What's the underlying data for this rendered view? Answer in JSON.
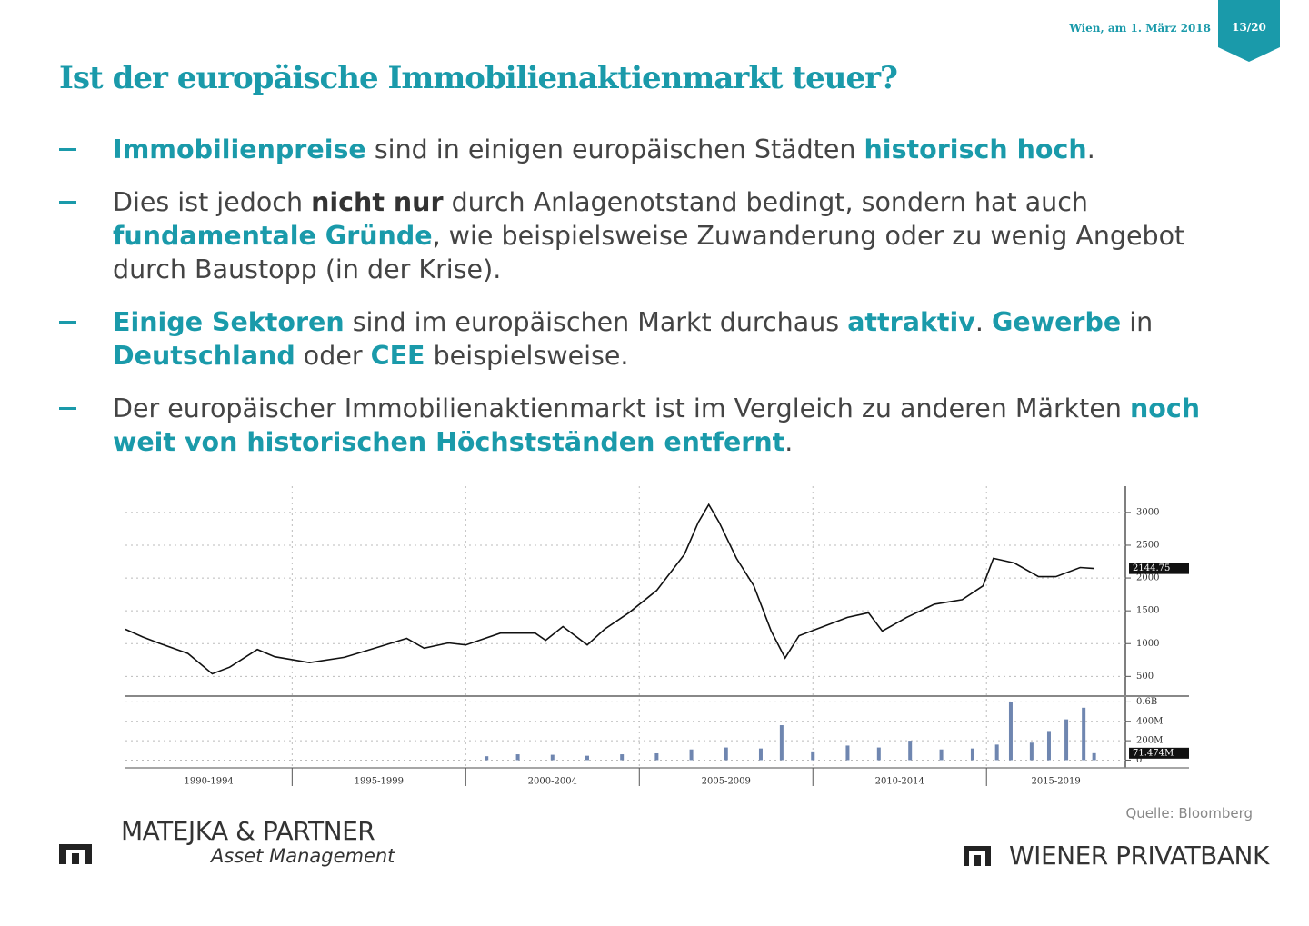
{
  "header": {
    "date": "Wien, am 1. März 2018",
    "page": "13/20"
  },
  "title": "Ist der europäische Immobilienaktienmarkt teuer?",
  "bullets": [
    {
      "runs": [
        {
          "text": "Immobilienpreise",
          "style": "accent"
        },
        {
          "text": " sind in einigen europäischen Städten ",
          "style": "plain"
        },
        {
          "text": "historisch hoch",
          "style": "accent"
        },
        {
          "text": ".",
          "style": "plain"
        }
      ]
    },
    {
      "runs": [
        {
          "text": "Dies ist jedoch ",
          "style": "plain"
        },
        {
          "text": "nicht nur",
          "style": "strong"
        },
        {
          "text": " durch Anlagenotstand bedingt, sondern hat auch ",
          "style": "plain"
        },
        {
          "text": "fundamentale Gründe",
          "style": "accent"
        },
        {
          "text": ", wie beispielsweise Zuwanderung oder zu wenig Angebot durch Baustopp (in der Krise).",
          "style": "plain"
        }
      ]
    },
    {
      "runs": [
        {
          "text": "Einige Sektoren",
          "style": "accent"
        },
        {
          "text": " sind im europäischen Markt durchaus ",
          "style": "plain"
        },
        {
          "text": "attraktiv",
          "style": "accent"
        },
        {
          "text": ". ",
          "style": "plain"
        },
        {
          "text": "Gewerbe",
          "style": "accent"
        },
        {
          "text": " in ",
          "style": "plain"
        },
        {
          "text": "Deutschland",
          "style": "accent"
        },
        {
          "text": " oder ",
          "style": "plain"
        },
        {
          "text": "CEE",
          "style": "accent"
        },
        {
          "text": " beispielsweise.",
          "style": "plain"
        }
      ]
    },
    {
      "runs": [
        {
          "text": "Der europäischer Immobilienaktienmarkt ist im Vergleich zu anderen Märkten ",
          "style": "plain"
        },
        {
          "text": "noch weit von historischen Höchstständen entfernt",
          "style": "accent"
        },
        {
          "text": ".",
          "style": "plain"
        }
      ]
    }
  ],
  "chart_data": [
    {
      "type": "line",
      "x": [
        1990.2,
        1990.7,
        1991.2,
        1992,
        1992.7,
        1993.2,
        1994,
        1994.5,
        1995.5,
        1996.5,
        1997.5,
        1998.3,
        1998.8,
        1999.5,
        2000,
        2001,
        2002,
        2002.3,
        2002.8,
        2003.5,
        2004,
        2004.7,
        2005.5,
        2006.3,
        2006.7,
        2007,
        2007.3,
        2007.8,
        2008.3,
        2008.8,
        2009.2,
        2009.6,
        2010.3,
        2011,
        2011.6,
        2012,
        2012.7,
        2013.5,
        2014.3,
        2014.9,
        2015.2,
        2015.8,
        2016.5,
        2017,
        2017.7,
        2018.1
      ],
      "series": [
        {
          "color": "#111111",
          "values": [
            1218,
            1100,
            1000,
            850,
            540,
            640,
            910,
            800,
            710,
            790,
            950,
            1080,
            930,
            1010,
            980,
            1160,
            1160,
            1050,
            1260,
            980,
            1220,
            1470,
            1810,
            2360,
            2850,
            3120,
            2850,
            2300,
            1880,
            1190,
            780,
            1120,
            1260,
            1400,
            1470,
            1190,
            1400,
            1600,
            1670,
            1880,
            2300,
            2230,
            2020,
            2020,
            2160,
            2144.75
          ]
        }
      ],
      "last_value": 2144.75,
      "xlim": [
        1990.2,
        2019
      ],
      "xticks": [
        {
          "value": 1990,
          "label": "1990-1994"
        },
        {
          "value": 1995,
          "label": "1995-1999"
        },
        {
          "value": 2000,
          "label": "2000-2004"
        },
        {
          "value": 2005,
          "label": "2005-2009"
        },
        {
          "value": 2010,
          "label": "2010-2014"
        },
        {
          "value": 2015,
          "label": "2015-2019"
        }
      ],
      "ylim": [
        200,
        3400
      ],
      "yticks": [
        500,
        1000,
        1500,
        2000,
        2500,
        3000
      ],
      "grid": true
    },
    {
      "type": "bar",
      "x": [
        2000.6,
        2001.5,
        2002.5,
        2003.5,
        2004.5,
        2005.5,
        2006.5,
        2007.5,
        2008.5,
        2009.1,
        2010,
        2011,
        2011.9,
        2012.8,
        2013.7,
        2014.6,
        2015.3,
        2015.7,
        2016.3,
        2016.8,
        2017.3,
        2017.8,
        2018.1
      ],
      "series": [
        {
          "color": "#6f86b0",
          "values": [
            40000000,
            60000000,
            55000000,
            45000000,
            60000000,
            70000000,
            110000000,
            130000000,
            120000000,
            360000000,
            90000000,
            150000000,
            130000000,
            200000000,
            110000000,
            120000000,
            160000000,
            600000000,
            180000000,
            300000000,
            420000000,
            540000000,
            71474000
          ]
        }
      ],
      "last_value": {
        "value": 71474000,
        "label": "71.474M"
      },
      "xlim": [
        1990.2,
        2019
      ],
      "ylim": [
        -80000000,
        660000000
      ],
      "yticks": [
        {
          "value": 0,
          "label": "0"
        },
        {
          "value": 200000000,
          "label": "200M"
        },
        {
          "value": 400000000,
          "label": "400M"
        },
        {
          "value": 600000000,
          "label": "0.6B"
        }
      ],
      "grid": true
    }
  ],
  "source": "Quelle: Bloomberg",
  "footer": {
    "left_logo_line1": "MATEJKA & PARTNER",
    "left_logo_line2": "Asset Management",
    "right_logo": "WIENER PRIVATBANK"
  }
}
